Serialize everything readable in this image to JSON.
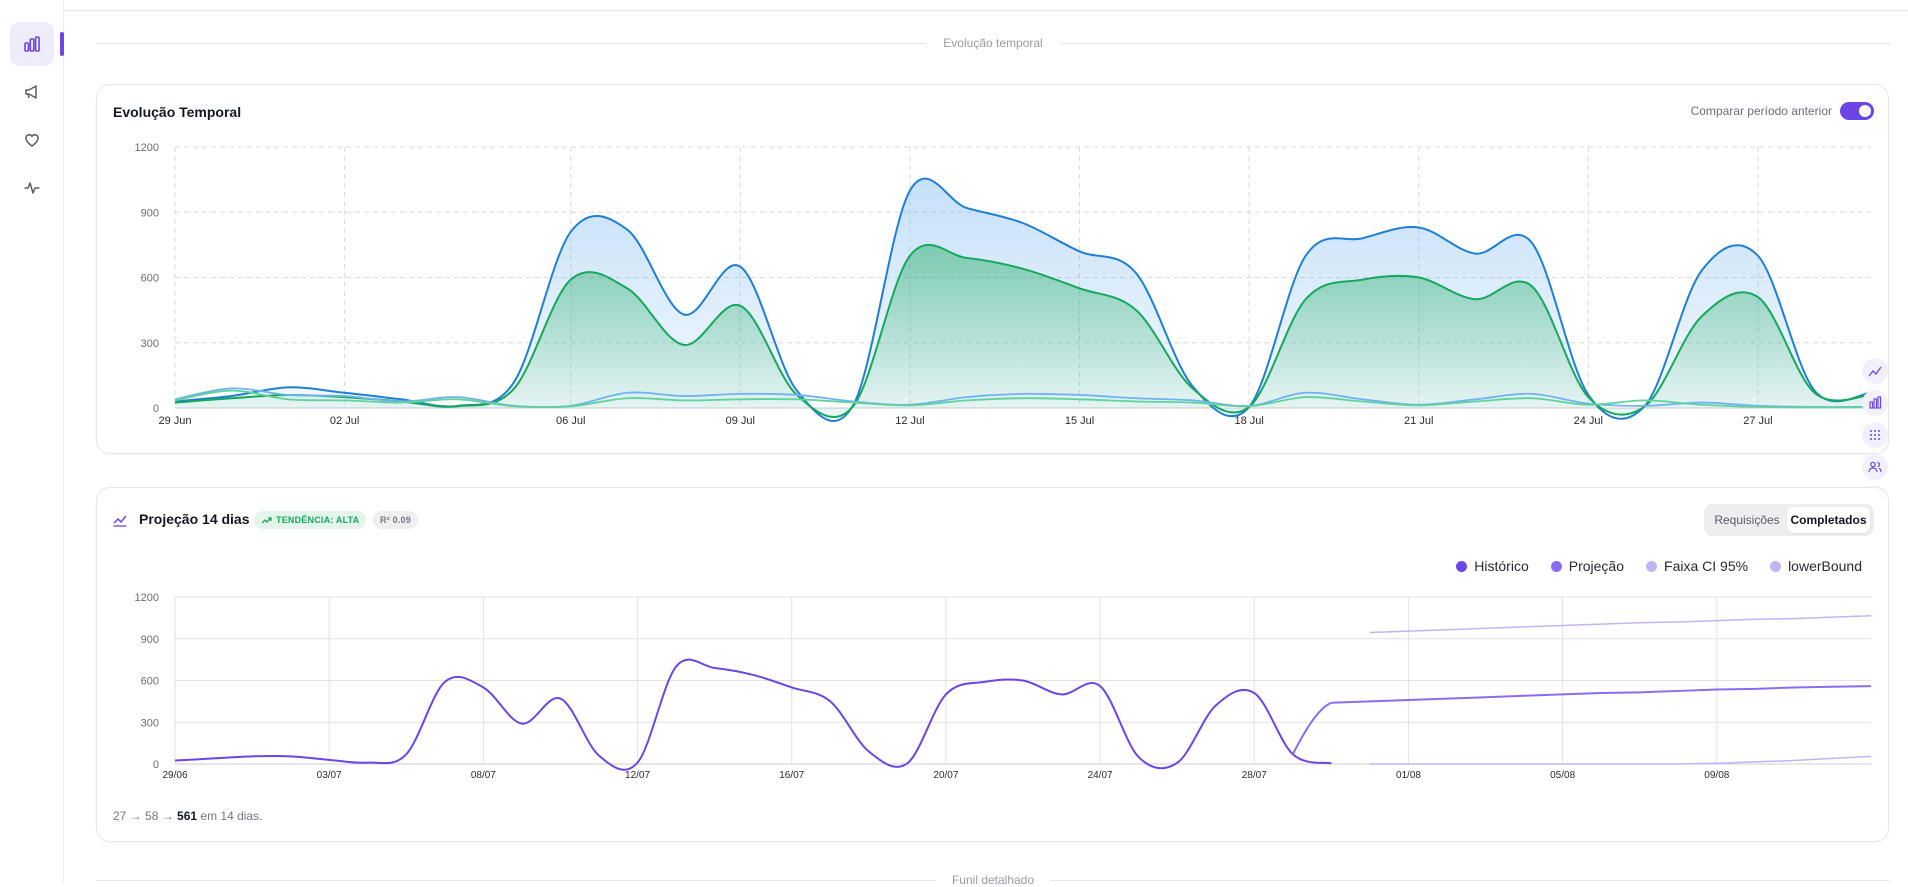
{
  "sidebar": {
    "items": [
      {
        "icon": "bar-chart-icon",
        "active": true
      },
      {
        "icon": "megaphone-icon",
        "active": false
      },
      {
        "icon": "heart-icon",
        "active": false
      },
      {
        "icon": "activity-icon",
        "active": false
      }
    ]
  },
  "sections": {
    "top_label": "Evolução temporal",
    "bottom_label": "Funil detalhado"
  },
  "evolution_card": {
    "title": "Evolução Temporal",
    "compare_label": "Comparar período anterior",
    "compare_on": true
  },
  "projection_card": {
    "title": "Projeção 14 dias",
    "trend_badge": "TENDÊNCIA: ALTA",
    "r2_badge": "R² 0.09",
    "segment": {
      "option_a": "Requisições",
      "option_b": "Completados",
      "selected": "Completados"
    },
    "legend": [
      {
        "label": "Histórico",
        "color": "#6b46e5"
      },
      {
        "label": "Projeção",
        "color": "#8b6cf0"
      },
      {
        "label": "Faixa CI 95%",
        "color": "#c3b3f5"
      },
      {
        "label": "lowerBound",
        "color": "#c3b3f5"
      }
    ],
    "footer": {
      "prefix": "27 → 58 → ",
      "value": "561",
      "suffix": " em 14 dias."
    }
  },
  "colors": {
    "accent": "#6b46e5",
    "blue": "#1f7fd6",
    "green": "#16a85b",
    "light_blue": "#6fb3f2",
    "light_green": "#5fd39b"
  },
  "chart_data": [
    {
      "type": "area",
      "title": "Evolução Temporal",
      "x": [
        "29 Jun",
        "30 Jun",
        "01 Jul",
        "02 Jul",
        "03 Jul",
        "04 Jul",
        "05 Jul",
        "06 Jul",
        "07 Jul",
        "08 Jul",
        "09 Jul",
        "10 Jul",
        "11 Jul",
        "12 Jul",
        "13 Jul",
        "14 Jul",
        "15 Jul",
        "16 Jul",
        "17 Jul",
        "18 Jul",
        "19 Jul",
        "20 Jul",
        "21 Jul",
        "22 Jul",
        "23 Jul",
        "24 Jul",
        "25 Jul",
        "26 Jul",
        "27 Jul",
        "28 Jul",
        "29 Jul"
      ],
      "xticks": [
        "29 Jun",
        "02 Jul",
        "06 Jul",
        "09 Jul",
        "12 Jul",
        "15 Jul",
        "18 Jul",
        "21 Jul",
        "24 Jul",
        "27 Jul"
      ],
      "series": [
        {
          "color": "#1f7fd6",
          "values": [
            30,
            55,
            95,
            70,
            40,
            10,
            120,
            810,
            820,
            430,
            650,
            80,
            15,
            1000,
            920,
            850,
            720,
            620,
            100,
            5,
            700,
            780,
            830,
            710,
            760,
            60,
            10,
            630,
            700,
            80,
            70
          ]
        },
        {
          "color": "#16a85b",
          "values": [
            25,
            45,
            60,
            50,
            30,
            8,
            90,
            590,
            550,
            290,
            470,
            60,
            10,
            700,
            690,
            640,
            550,
            450,
            90,
            5,
            500,
            590,
            600,
            500,
            560,
            50,
            8,
            420,
            510,
            70,
            60
          ]
        },
        {
          "color": "#6fb3f2",
          "values": [
            40,
            90,
            60,
            55,
            30,
            50,
            10,
            10,
            70,
            55,
            65,
            60,
            30,
            15,
            50,
            65,
            60,
            45,
            35,
            10,
            70,
            40,
            15,
            40,
            65,
            20,
            10,
            25,
            10,
            5,
            5
          ]
        },
        {
          "color": "#5fd39b",
          "values": [
            35,
            80,
            40,
            35,
            25,
            40,
            8,
            8,
            45,
            35,
            40,
            40,
            25,
            12,
            35,
            45,
            40,
            30,
            25,
            8,
            50,
            30,
            12,
            30,
            45,
            15,
            35,
            15,
            5,
            3,
            3
          ]
        }
      ],
      "ylim": [
        0,
        1200
      ],
      "yticks": [
        0,
        300,
        600,
        900,
        1200
      ],
      "grid": true
    },
    {
      "type": "line",
      "title": "Projeção 14 dias",
      "xticks": [
        "29/06",
        "03/07",
        "08/07",
        "12/07",
        "16/07",
        "20/07",
        "24/07",
        "28/07",
        "01/08",
        "05/08",
        "09/08"
      ],
      "series": [
        {
          "name": "Histórico",
          "color": "#6b46e5",
          "x_start": 0,
          "values": [
            25,
            40,
            55,
            55,
            30,
            10,
            70,
            590,
            550,
            290,
            470,
            60,
            10,
            700,
            690,
            640,
            550,
            450,
            90,
            5,
            500,
            590,
            600,
            500,
            560,
            50,
            8,
            420,
            510,
            70,
            5
          ]
        },
        {
          "name": "Projeção",
          "color": "#8b6cf0",
          "x_start": 30,
          "values": [
            440,
            450,
            460,
            470,
            480,
            490,
            500,
            510,
            515,
            525,
            535,
            540,
            550,
            555,
            560
          ]
        },
        {
          "name": "Faixa CI 95%",
          "color": "#c3b3f5",
          "x_start": 31,
          "values": [
            945,
            955,
            965,
            975,
            985,
            995,
            1005,
            1015,
            1020,
            1030,
            1040,
            1045,
            1055,
            1065
          ]
        },
        {
          "name": "lowerBound",
          "color": "#c3b3f5",
          "x_start": 31,
          "values": [
            0,
            0,
            0,
            0,
            0,
            0,
            0,
            0,
            0,
            5,
            15,
            25,
            40,
            55
          ]
        }
      ],
      "ylim": [
        0,
        1200
      ],
      "yticks": [
        0,
        300,
        600,
        900,
        1200
      ],
      "grid": true
    }
  ]
}
